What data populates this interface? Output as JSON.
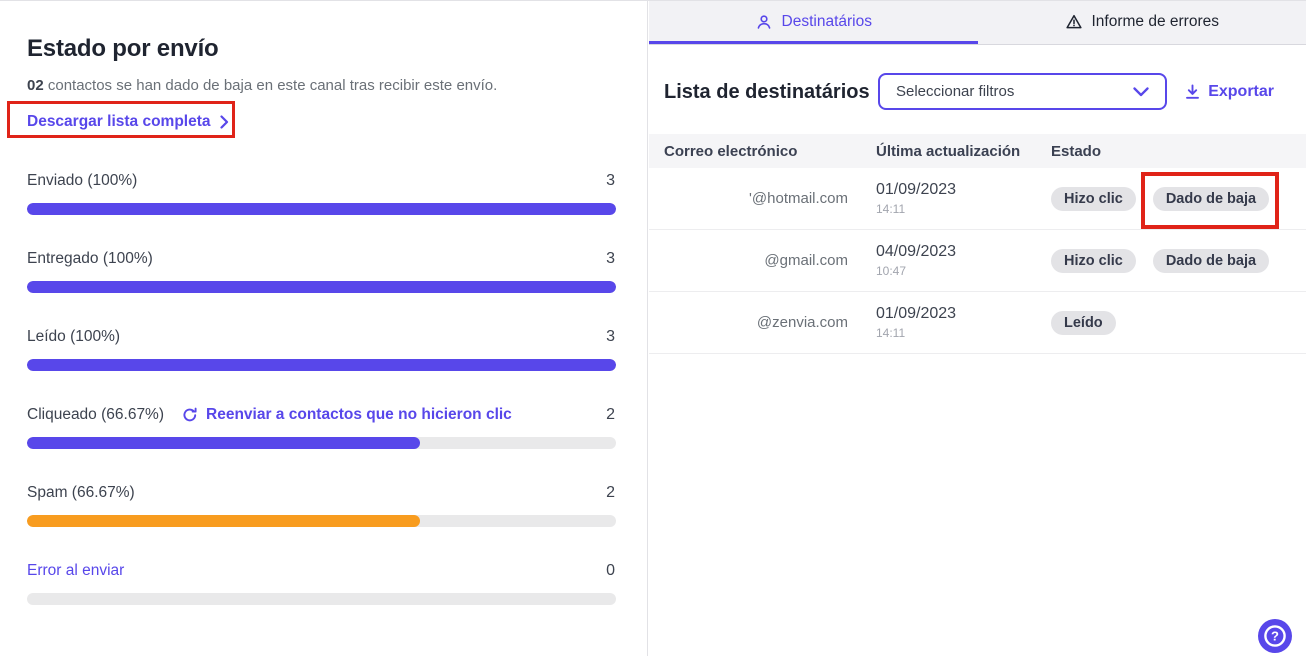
{
  "colors": {
    "accent": "#5847ea",
    "orange": "#f89c1f",
    "red": "#e02318",
    "track": "#e9e9ea",
    "badge_bg": "#e3e3e6",
    "tabbar_bg": "#f2f2f5",
    "thead_bg": "#f5f5f7",
    "text_dark": "#1f2430",
    "text_body": "#3d434f",
    "text_gray": "#6a7077",
    "text_light": "#a2a5ae",
    "divider": "#e2e2e6"
  },
  "icons": {
    "tab_destinatarios": "person-icon",
    "tab_errores": "warning-triangle-icon",
    "download_list": "chevron-right-icon",
    "resend": "refresh-icon",
    "filter": "chevron-down-icon",
    "export": "download-icon",
    "help": "question-circle-icon"
  },
  "left_panel": {
    "title": "Estado por envío",
    "summary_count": "02",
    "summary_text": " contactos se han dado de baja en este canal tras recibir este envío.",
    "download_link": "Descargar lista completa",
    "bars": [
      {
        "label": "Enviado (100%)",
        "value": "3",
        "pct": 100,
        "color": "purple"
      },
      {
        "label": "Entregado (100%)",
        "value": "3",
        "pct": 100,
        "color": "purple"
      },
      {
        "label": "Leído (100%)",
        "value": "3",
        "pct": 100,
        "color": "purple"
      },
      {
        "label": "Cliqueado (66.67%)",
        "value": "2",
        "pct": 66.67,
        "color": "purple",
        "resend_link": "Reenviar a contactos que no hicieron clic"
      },
      {
        "label": "Spam (66.67%)",
        "value": "2",
        "pct": 66.67,
        "color": "orange"
      },
      {
        "label": "Error al enviar",
        "value": "0",
        "pct": 0,
        "color": "none"
      }
    ]
  },
  "right_panel": {
    "tabs": [
      {
        "label": "Destinatários",
        "active": true
      },
      {
        "label": "Informe de errores",
        "active": false
      }
    ],
    "heading": "Lista de destinatários",
    "filter_placeholder": "Seleccionar filtros",
    "export_label": "Exportar",
    "table": {
      "headers": [
        "Correo electrónico",
        "Última actualización",
        "Estado"
      ],
      "rows": [
        {
          "email": "'@hotmail.com",
          "date": "01/09/2023",
          "time": "14:11",
          "badges": [
            "Hizo clic",
            "Dado de baja"
          ],
          "annotated_badge": "Dado de baja"
        },
        {
          "email": "@gmail.com",
          "date": "04/09/2023",
          "time": "10:47",
          "badges": [
            "Hizo clic",
            "Dado de baja"
          ]
        },
        {
          "email": "@zenvia.com",
          "date": "01/09/2023",
          "time": "14:11",
          "badges": [
            "Leído"
          ]
        }
      ]
    }
  }
}
